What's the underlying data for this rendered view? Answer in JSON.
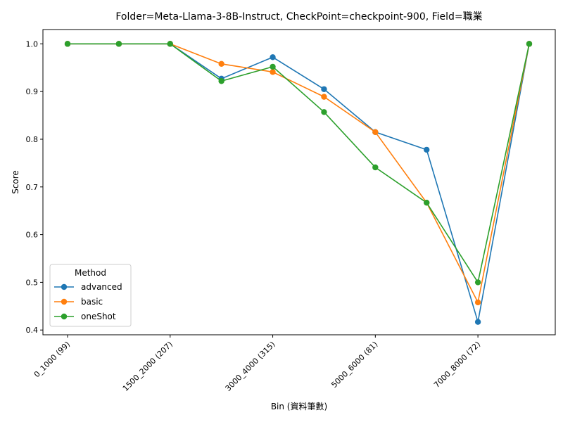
{
  "chart_data": {
    "type": "line",
    "title": "Folder=Meta-Llama-3-8B-Instruct, CheckPoint=checkpoint-900, Field=職業",
    "xlabel": "Bin (資料筆數)",
    "ylabel": "Score",
    "categories": [
      "0_1000 (99)",
      "",
      "1500_2000 (207)",
      "",
      "3000_4000 (315)",
      "",
      "5000_6000 (81)",
      "",
      "7000_8000 (72)",
      ""
    ],
    "x_tick_labels": [
      "0_1000 (99)",
      "1500_2000 (207)",
      "3000_4000 (315)",
      "5000_6000 (81)",
      "7000_8000 (72)"
    ],
    "x_tick_indices": [
      0,
      2,
      4,
      6,
      8
    ],
    "ylim": [
      0.39,
      1.03
    ],
    "y_ticks": [
      "0.4",
      "0.5",
      "0.6",
      "0.7",
      "0.8",
      "0.9",
      "1.0"
    ],
    "grid": false,
    "legend": {
      "title": "Method",
      "placement": "lower-left"
    },
    "series": [
      {
        "name": "advanced",
        "color": "#1f77b4",
        "values": [
          1.0,
          1.0,
          1.0,
          0.927,
          0.972,
          0.905,
          0.815,
          0.778,
          0.417,
          1.0
        ]
      },
      {
        "name": "basic",
        "color": "#ff7f0e",
        "values": [
          1.0,
          1.0,
          1.0,
          0.958,
          0.941,
          0.889,
          0.815,
          0.667,
          0.458,
          1.0
        ]
      },
      {
        "name": "oneShot",
        "color": "#2ca02c",
        "values": [
          1.0,
          1.0,
          1.0,
          0.922,
          0.952,
          0.857,
          0.741,
          0.667,
          0.5,
          1.0
        ]
      }
    ]
  }
}
